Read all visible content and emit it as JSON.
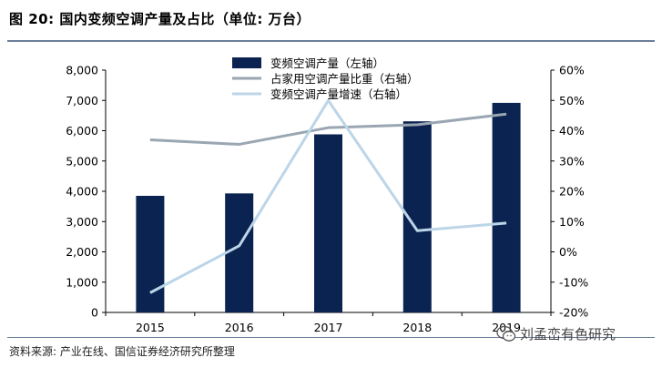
{
  "header": {
    "title": "图 20: 国内变频空调产量及占比（单位: 万台）"
  },
  "footer": {
    "source": "资料来源: 产业在线、国信证券经济研究所整理",
    "watermark": "刘孟峦有色研究"
  },
  "colors": {
    "bar": "#0b2350",
    "line_share": "#9aa6b2",
    "line_growth": "#bcd5e8",
    "rule": "#6b7f99"
  },
  "icons": {
    "watermark": "wechat-icon"
  },
  "chart_data": {
    "type": "bar",
    "categories": [
      "2015",
      "2016",
      "2017",
      "2018",
      "2019"
    ],
    "left_axis": {
      "ylim": [
        0,
        8000
      ],
      "ticks": [
        "0",
        "1,000",
        "2,000",
        "3,000",
        "4,000",
        "5,000",
        "6,000",
        "7,000",
        "8,000"
      ]
    },
    "right_axis": {
      "ylim": [
        -20,
        60
      ],
      "ticks": [
        "-20%",
        "-10%",
        "0%",
        "10%",
        "20%",
        "30%",
        "40%",
        "50%",
        "60%"
      ]
    },
    "series": [
      {
        "name": "变频空调产量（左轴）",
        "type": "bar",
        "axis": "left",
        "values": [
          3850,
          3930,
          5880,
          6310,
          6920
        ]
      },
      {
        "name": "占家用空调产量比重（右轴）",
        "type": "line",
        "axis": "right",
        "values": [
          37,
          35.5,
          41,
          42,
          45.5
        ]
      },
      {
        "name": "变频空调产量增速（右轴）",
        "type": "line",
        "axis": "right",
        "values": [
          -13.5,
          2,
          50,
          7,
          9.5
        ]
      }
    ],
    "legend_position": "top-center",
    "grid": false
  }
}
